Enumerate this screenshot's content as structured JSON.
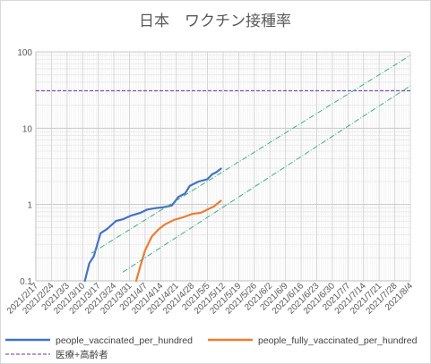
{
  "chart_data": {
    "type": "line",
    "title": "日本　ワクチン接種率",
    "xlabel": "",
    "ylabel": "",
    "y_scale": "log",
    "ylim": [
      0.1,
      100
    ],
    "y_ticks": [
      "0.1",
      "1",
      "10",
      "100"
    ],
    "x_range": [
      "2021/2/17",
      "2021/8/4"
    ],
    "x_tick_labels": [
      "2021/2/17",
      "2021/2/24",
      "2021/3/3",
      "2021/3/10",
      "2021/3/17",
      "2021/3/24",
      "2021/3/31",
      "2021/4/7",
      "2021/4/14",
      "2021/4/21",
      "2021/4/28",
      "2021/5/5",
      "2021/5/12",
      "2021/5/19",
      "2021/5/26",
      "2021/6/2",
      "2021/6/9",
      "2021/6/16",
      "2021/6/23",
      "2021/6/30",
      "2021/7/7",
      "2021/7/14",
      "2021/7/21",
      "2021/7/28",
      "2021/8/4"
    ],
    "grid": true,
    "legend_position": "bottom",
    "series": [
      {
        "name": "people_vaccinated_per_hundred",
        "color": "#4472c4",
        "style": "solid",
        "points": [
          [
            "2021/3/11",
            0.1
          ],
          [
            "2021/3/13",
            0.17
          ],
          [
            "2021/3/15",
            0.21
          ],
          [
            "2021/3/18",
            0.42
          ],
          [
            "2021/3/21",
            0.48
          ],
          [
            "2021/3/25",
            0.61
          ],
          [
            "2021/3/28",
            0.64
          ],
          [
            "2021/4/1",
            0.72
          ],
          [
            "2021/4/5",
            0.78
          ],
          [
            "2021/4/8",
            0.86
          ],
          [
            "2021/4/12",
            0.9
          ],
          [
            "2021/4/15",
            0.92
          ],
          [
            "2021/4/19",
            0.97
          ],
          [
            "2021/4/22",
            1.26
          ],
          [
            "2021/4/25",
            1.4
          ],
          [
            "2021/4/27",
            1.75
          ],
          [
            "2021/5/1",
            2.0
          ],
          [
            "2021/5/5",
            2.15
          ],
          [
            "2021/5/7",
            2.48
          ],
          [
            "2021/5/9",
            2.65
          ],
          [
            "2021/5/11",
            2.95
          ]
        ]
      },
      {
        "name": "people_fully_vaccinated_per_hundred",
        "color": "#ed7d31",
        "style": "solid",
        "points": [
          [
            "2021/4/3",
            0.1
          ],
          [
            "2021/4/5",
            0.16
          ],
          [
            "2021/4/7",
            0.25
          ],
          [
            "2021/4/10",
            0.38
          ],
          [
            "2021/4/13",
            0.47
          ],
          [
            "2021/4/16",
            0.55
          ],
          [
            "2021/4/20",
            0.63
          ],
          [
            "2021/4/24",
            0.68
          ],
          [
            "2021/4/28",
            0.75
          ],
          [
            "2021/5/2",
            0.78
          ],
          [
            "2021/5/5",
            0.86
          ],
          [
            "2021/5/8",
            0.95
          ],
          [
            "2021/5/11",
            1.12
          ]
        ]
      },
      {
        "name": "医療+高齢者",
        "color": "#7030a0",
        "style": "dashed",
        "points": [
          [
            "2021/2/17",
            31
          ],
          [
            "2021/8/4",
            31
          ]
        ]
      },
      {
        "name": "",
        "color": "#3fae7f",
        "style": "dash-dot",
        "points": [
          [
            "2021/3/14",
            0.23
          ],
          [
            "2021/8/4",
            90
          ]
        ]
      },
      {
        "name": "",
        "color": "#3fae7f",
        "style": "dash-dot",
        "points": [
          [
            "2021/3/28",
            0.13
          ],
          [
            "2021/8/4",
            36
          ]
        ]
      }
    ]
  }
}
